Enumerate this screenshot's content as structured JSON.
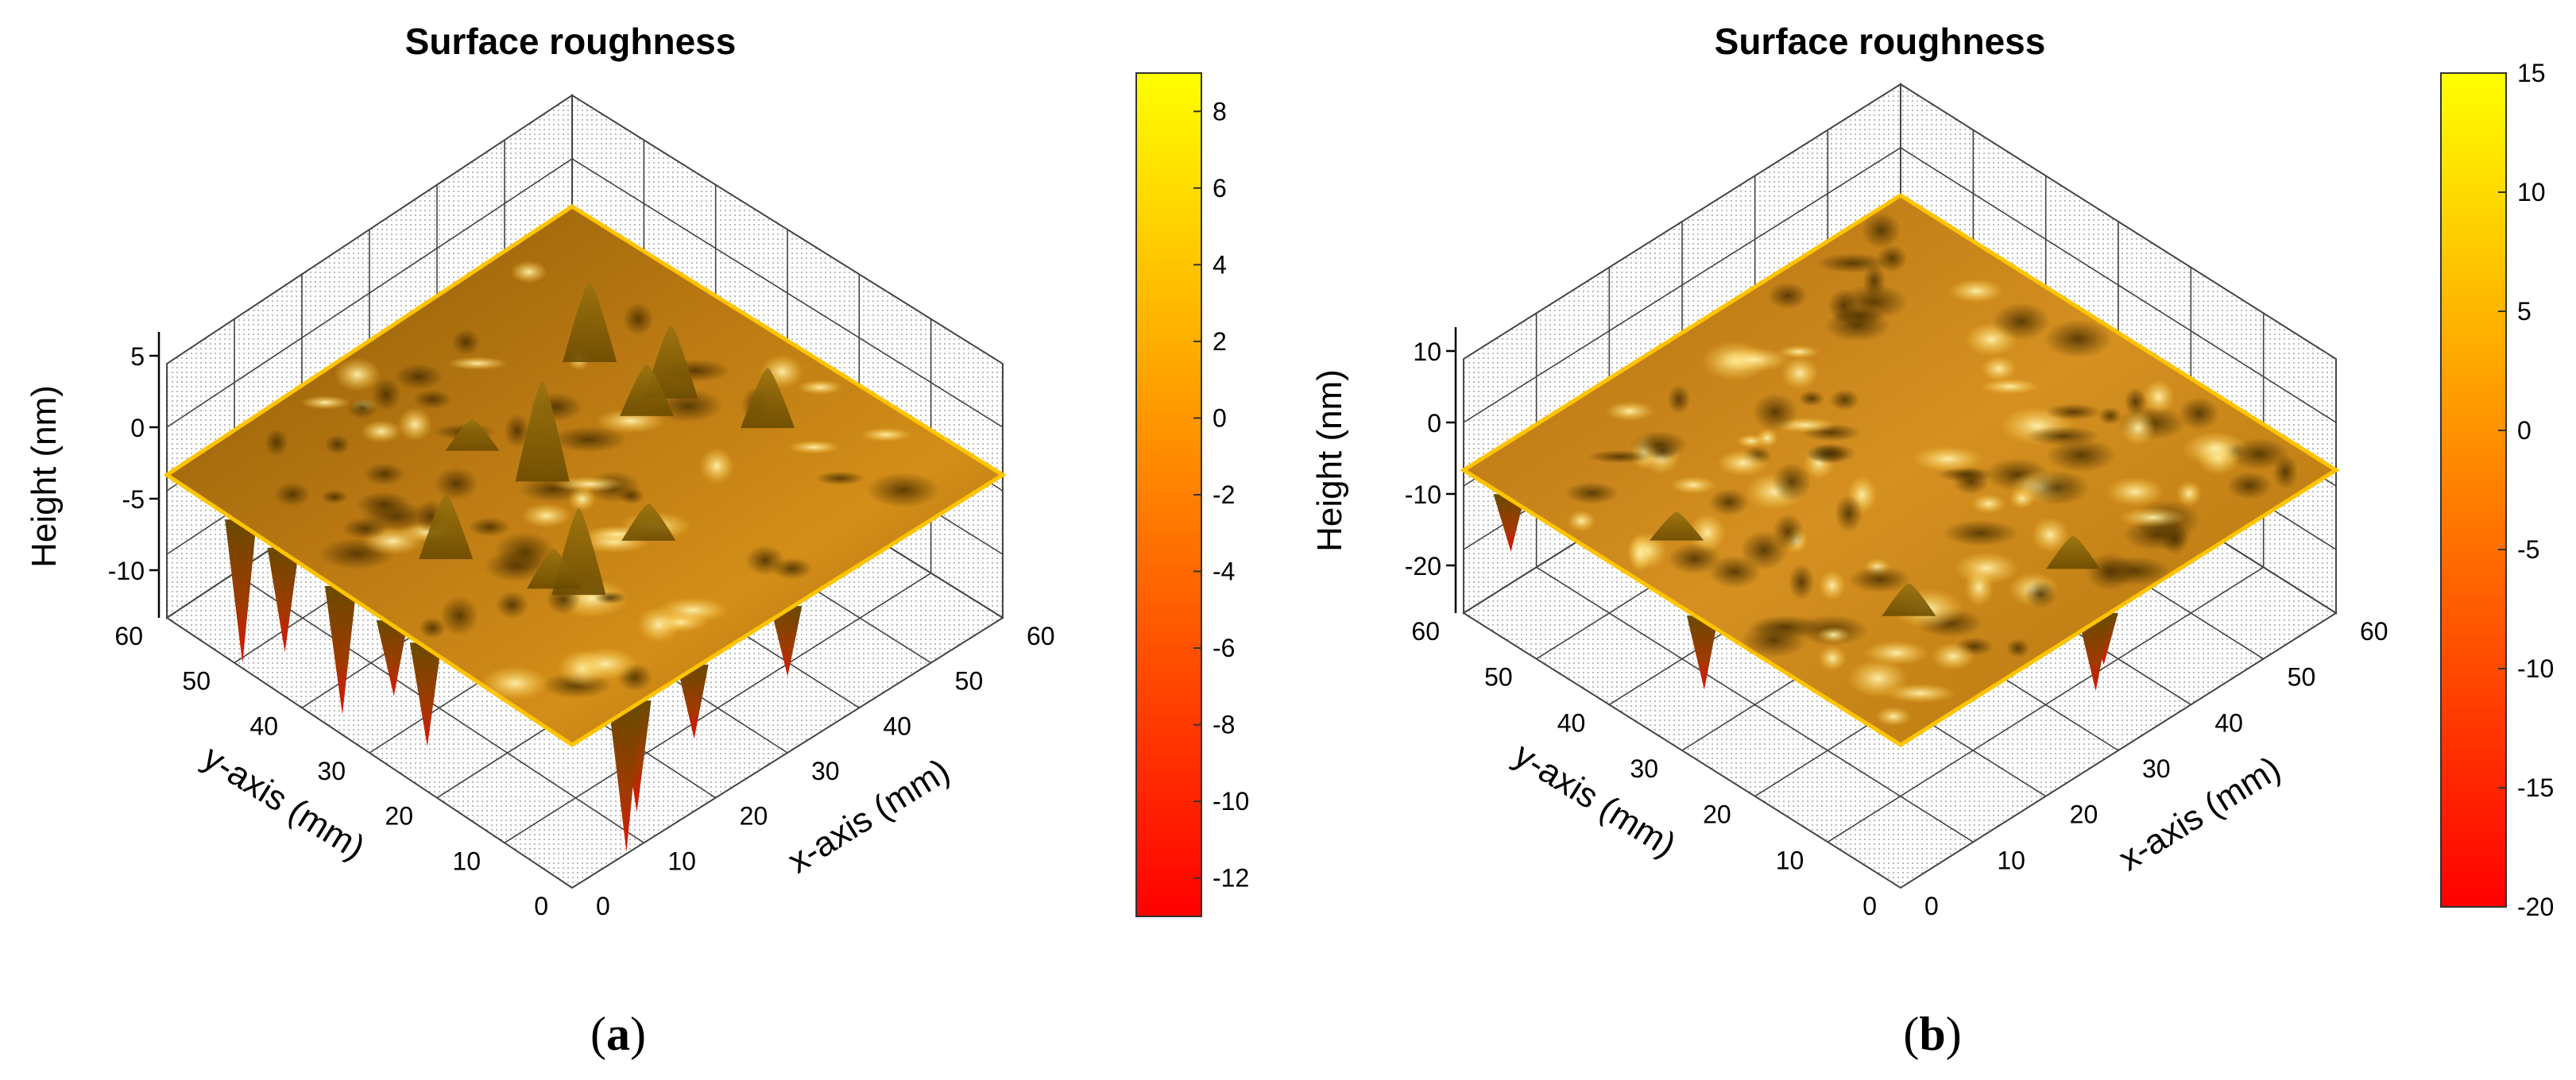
{
  "chart_data": [
    {
      "type": "surface3d",
      "panel_label": "a",
      "title": "Surface roughness",
      "xlabel": "x-axis (mm)",
      "ylabel": "y-axis (mm)",
      "zlabel": "Height (nm)",
      "x_ticks": [
        "0",
        "10",
        "20",
        "30",
        "40",
        "50",
        "60"
      ],
      "y_ticks": [
        "0",
        "10",
        "20",
        "30",
        "40",
        "50",
        "60"
      ],
      "z_ticks": [
        "5",
        "0",
        "-5",
        "-10"
      ],
      "zlim": [
        -13,
        9
      ],
      "grid": true,
      "colorbar": {
        "ticks": [
          "8",
          "6",
          "4",
          "2",
          "0",
          "-2",
          "-4",
          "-6",
          "-8",
          "-10",
          "-12"
        ],
        "range": [
          -13,
          9
        ],
        "colormap": "autumn",
        "colors": [
          "#ff0000",
          "#ff8000",
          "#ffff00"
        ]
      }
    },
    {
      "type": "surface3d",
      "panel_label": "b",
      "title": "Surface roughness",
      "xlabel": "x-axis (mm)",
      "ylabel": "y-axis (mm)",
      "zlabel": "Height (nm)",
      "x_ticks": [
        "0",
        "10",
        "20",
        "30",
        "40",
        "50",
        "60"
      ],
      "y_ticks": [
        "0",
        "10",
        "20",
        "30",
        "40",
        "50",
        "60"
      ],
      "z_ticks": [
        "10",
        "0",
        "-10",
        "-20"
      ],
      "zlim": [
        -20,
        15
      ],
      "grid": true,
      "colorbar": {
        "ticks": [
          "15",
          "10",
          "5",
          "0",
          "-5",
          "-10",
          "-15",
          "-20"
        ],
        "range": [
          -20,
          15
        ],
        "colormap": "autumn",
        "colors": [
          "#ff0000",
          "#ff8000",
          "#ffff00"
        ]
      }
    }
  ],
  "surface_colors": {
    "dark": "#5a3a00",
    "mid": "#b86e00",
    "light": "#e8a21a",
    "highlight": "#ffe38a",
    "edge": "#ffc400"
  }
}
